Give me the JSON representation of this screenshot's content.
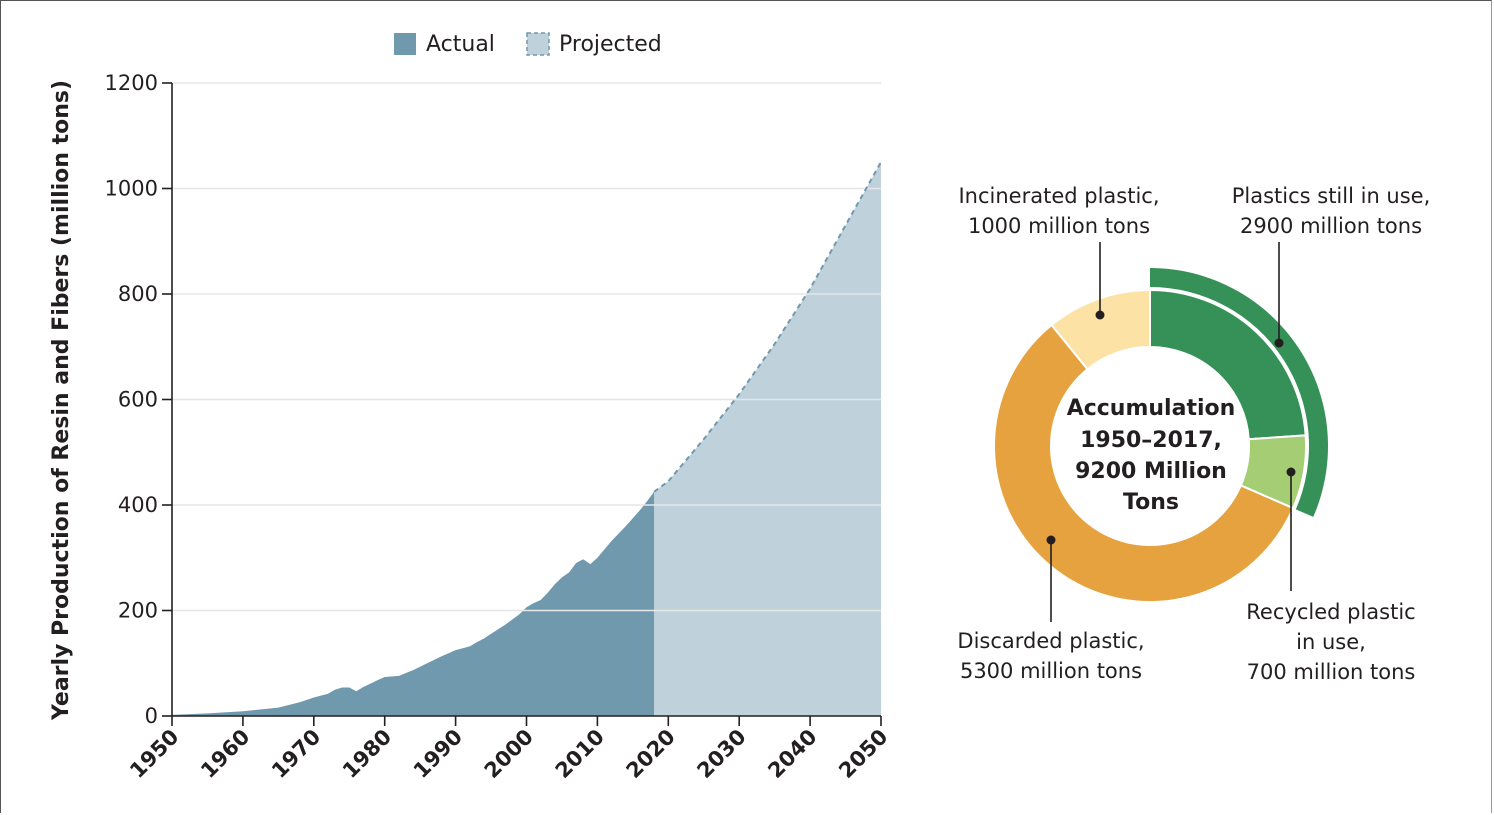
{
  "colors": {
    "actual": "#7199ad",
    "projected": "#bfd2dc",
    "grid": "#e6e6e6",
    "incinerated": "#fde2a5",
    "in_use": "#369158",
    "recycled": "#a5cd73",
    "discarded": "#e6a23f"
  },
  "chart_data": [
    {
      "type": "area",
      "legend": {
        "actual": "Actual",
        "projected": "Projected",
        "placement": "top"
      },
      "ylabel": "Yearly Production of Resin and Fibers (million tons)",
      "xlabel": "",
      "xlim": [
        1950,
        2050
      ],
      "ylim": [
        0,
        1200
      ],
      "xticks": [
        "1950",
        "1960",
        "1970",
        "1980",
        "1990",
        "2000",
        "2010",
        "2020",
        "2030",
        "2040",
        "2050"
      ],
      "yticks": [
        "0",
        "200",
        "400",
        "600",
        "800",
        "1000",
        "1200"
      ],
      "grid": true,
      "series": [
        {
          "name": "Actual",
          "x": [
            1950,
            1955,
            1960,
            1965,
            1968,
            1970,
            1972,
            1973,
            1974,
            1975,
            1976,
            1977,
            1979,
            1980,
            1982,
            1984,
            1986,
            1988,
            1990,
            1992,
            1993,
            1994,
            1995,
            1997,
            1999,
            2000,
            2001,
            2002,
            2003,
            2004,
            2005,
            2006,
            2007,
            2008,
            2009,
            2010,
            2012,
            2014,
            2016,
            2017,
            2018
          ],
          "y": [
            2,
            5,
            9,
            16,
            26,
            35,
            42,
            50,
            54,
            54,
            47,
            55,
            68,
            74,
            76,
            87,
            100,
            113,
            125,
            132,
            140,
            147,
            156,
            173,
            193,
            206,
            214,
            220,
            234,
            250,
            263,
            272,
            290,
            297,
            288,
            300,
            332,
            360,
            390,
            407,
            425
          ]
        },
        {
          "name": "Projected",
          "x": [
            2018,
            2020,
            2025,
            2030,
            2035,
            2040,
            2045,
            2050
          ],
          "y": [
            425,
            445,
            525,
            610,
            705,
            810,
            930,
            1050
          ]
        }
      ]
    },
    {
      "type": "pie",
      "title": "Accumulation 1950–2017, 9200 Million Tons",
      "center_lines": [
        "Accumulation",
        "1950–2017,",
        "9200 Million",
        "Tons"
      ],
      "slices": [
        {
          "label": "Plastics still in use",
          "value": 2200
        },
        {
          "label": "Recycled plastic in use",
          "value": 700
        },
        {
          "label": "Discarded plastic",
          "value": 5300
        },
        {
          "label": "Incinerated plastic",
          "value": 1000
        }
      ],
      "outer_arc_value": 2900,
      "annotations": {
        "incinerated": [
          "Incinerated plastic,",
          "1000 million tons"
        ],
        "in_use": [
          "Plastics still in use,",
          "2900 million tons"
        ],
        "discarded": [
          "Discarded plastic,",
          "5300 million tons"
        ],
        "recycled": [
          "Recycled plastic",
          "in use,",
          "700 million tons"
        ]
      }
    }
  ]
}
